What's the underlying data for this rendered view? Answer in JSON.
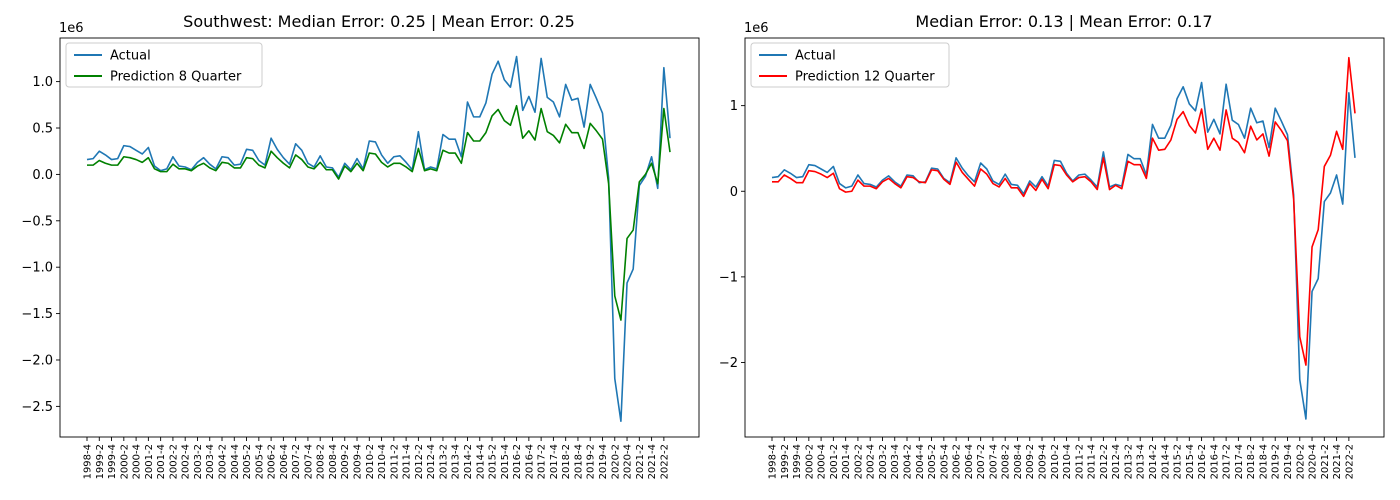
{
  "chart_data": [
    {
      "type": "line",
      "title": "Southwest: Median Error: 0.25 | Mean Error: 0.25",
      "xlabel": "",
      "ylabel": "",
      "offset_text": "1e6",
      "ylim": [
        -2.83,
        1.47
      ],
      "yticks": [
        -2.5,
        -2.0,
        -1.5,
        -1.0,
        -0.5,
        0.0,
        0.5,
        1.0
      ],
      "ytick_labels": [
        "−2.5",
        "−2.0",
        "−1.5",
        "−1.0",
        "−0.5",
        "0.0",
        "0.5",
        "1.0"
      ],
      "legend_position": "upper-left",
      "grid": false,
      "x": [
        "1998-4",
        "1999-1",
        "1999-2",
        "1999-3",
        "1999-4",
        "2000-1",
        "2000-2",
        "2000-3",
        "2000-4",
        "2001-1",
        "2001-2",
        "2001-3",
        "2001-4",
        "2002-1",
        "2002-2",
        "2002-3",
        "2002-4",
        "2003-1",
        "2003-2",
        "2003-3",
        "2003-4",
        "2004-1",
        "2004-2",
        "2004-3",
        "2004-4",
        "2005-1",
        "2005-2",
        "2005-3",
        "2005-4",
        "2006-1",
        "2006-2",
        "2006-3",
        "2006-4",
        "2007-1",
        "2007-2",
        "2007-3",
        "2007-4",
        "2008-1",
        "2008-2",
        "2008-3",
        "2008-4",
        "2009-1",
        "2009-2",
        "2009-3",
        "2009-4",
        "2010-1",
        "2010-2",
        "2010-3",
        "2010-4",
        "2011-1",
        "2011-2",
        "2011-3",
        "2011-4",
        "2012-1",
        "2012-2",
        "2012-3",
        "2012-4",
        "2013-1",
        "2013-2",
        "2013-3",
        "2013-4",
        "2014-1",
        "2014-2",
        "2014-3",
        "2014-4",
        "2015-1",
        "2015-2",
        "2015-3",
        "2015-4",
        "2016-1",
        "2016-2",
        "2016-3",
        "2016-4",
        "2017-1",
        "2017-2",
        "2017-3",
        "2017-4",
        "2018-1",
        "2018-2",
        "2018-3",
        "2018-4",
        "2019-1",
        "2019-2",
        "2019-3",
        "2019-4",
        "2020-1",
        "2020-2",
        "2020-3",
        "2020-4",
        "2021-1",
        "2021-2",
        "2021-3",
        "2021-4",
        "2022-1",
        "2022-2",
        "2022-3"
      ],
      "x_tick_labels": [
        "1998-4",
        "1999-2",
        "1999-4",
        "2000-2",
        "2000-4",
        "2001-2",
        "2001-4",
        "2002-2",
        "2002-4",
        "2003-2",
        "2003-4",
        "2004-2",
        "2004-4",
        "2005-2",
        "2005-4",
        "2006-2",
        "2006-4",
        "2007-2",
        "2007-4",
        "2008-2",
        "2008-4",
        "2009-2",
        "2009-4",
        "2010-2",
        "2010-4",
        "2011-2",
        "2011-4",
        "2012-2",
        "2012-4",
        "2013-2",
        "2013-4",
        "2014-2",
        "2014-4",
        "2015-2",
        "2015-4",
        "2016-2",
        "2016-4",
        "2017-2",
        "2017-4",
        "2018-2",
        "2018-4",
        "2019-2",
        "2019-4",
        "2020-2",
        "2020-4",
        "2021-2",
        "2021-4",
        "2022-2"
      ],
      "series": [
        {
          "name": "Actual",
          "color": "#1f77b4",
          "values": [
            0.16,
            0.17,
            0.25,
            0.21,
            0.16,
            0.17,
            0.31,
            0.3,
            0.26,
            0.22,
            0.29,
            0.09,
            0.04,
            0.06,
            0.19,
            0.09,
            0.08,
            0.05,
            0.13,
            0.18,
            0.11,
            0.06,
            0.19,
            0.18,
            0.1,
            0.11,
            0.27,
            0.26,
            0.15,
            0.1,
            0.39,
            0.27,
            0.18,
            0.11,
            0.33,
            0.26,
            0.12,
            0.08,
            0.2,
            0.08,
            0.07,
            -0.03,
            0.12,
            0.05,
            0.17,
            0.06,
            0.36,
            0.35,
            0.21,
            0.12,
            0.19,
            0.2,
            0.13,
            0.05,
            0.46,
            0.05,
            0.08,
            0.06,
            0.43,
            0.38,
            0.38,
            0.19,
            0.78,
            0.62,
            0.62,
            0.77,
            1.08,
            1.22,
            1.02,
            0.94,
            1.27,
            0.69,
            0.84,
            0.67,
            1.25,
            0.83,
            0.78,
            0.62,
            0.97,
            0.8,
            0.82,
            0.51,
            0.97,
            0.82,
            0.66,
            -0.04,
            -2.2,
            -2.66,
            -1.17,
            -1.02,
            -0.12,
            -0.02,
            0.19,
            -0.15,
            1.15,
            0.39
          ]
        },
        {
          "name": "Prediction 8 Quarter",
          "color": "#008000",
          "values": [
            0.1,
            0.1,
            0.15,
            0.12,
            0.1,
            0.1,
            0.19,
            0.18,
            0.16,
            0.13,
            0.18,
            0.06,
            0.03,
            0.03,
            0.11,
            0.06,
            0.06,
            0.04,
            0.09,
            0.12,
            0.07,
            0.04,
            0.13,
            0.12,
            0.07,
            0.07,
            0.18,
            0.17,
            0.1,
            0.07,
            0.25,
            0.18,
            0.12,
            0.07,
            0.21,
            0.16,
            0.08,
            0.06,
            0.13,
            0.05,
            0.05,
            -0.05,
            0.09,
            0.03,
            0.12,
            0.04,
            0.23,
            0.22,
            0.13,
            0.08,
            0.12,
            0.12,
            0.08,
            0.03,
            0.28,
            0.04,
            0.06,
            0.04,
            0.26,
            0.23,
            0.23,
            0.12,
            0.45,
            0.36,
            0.36,
            0.45,
            0.63,
            0.7,
            0.58,
            0.53,
            0.74,
            0.39,
            0.47,
            0.37,
            0.71,
            0.46,
            0.42,
            0.34,
            0.54,
            0.45,
            0.45,
            0.28,
            0.55,
            0.47,
            0.38,
            -0.1,
            -1.31,
            -1.57,
            -0.69,
            -0.6,
            -0.08,
            0.0,
            0.12,
            -0.1,
            0.71,
            0.24
          ]
        }
      ]
    },
    {
      "type": "line",
      "title": "Median Error: 0.13 | Mean Error: 0.17",
      "xlabel": "",
      "ylabel": "",
      "offset_text": "1e6",
      "ylim": [
        -2.87,
        1.79
      ],
      "yticks": [
        -2,
        -1,
        0,
        1
      ],
      "ytick_labels": [
        "−2",
        "−1",
        "0",
        "1"
      ],
      "legend_position": "upper-left",
      "grid": false,
      "x": [
        "1998-4",
        "1999-1",
        "1999-2",
        "1999-3",
        "1999-4",
        "2000-1",
        "2000-2",
        "2000-3",
        "2000-4",
        "2001-1",
        "2001-2",
        "2001-3",
        "2001-4",
        "2002-1",
        "2002-2",
        "2002-3",
        "2002-4",
        "2003-1",
        "2003-2",
        "2003-3",
        "2003-4",
        "2004-1",
        "2004-2",
        "2004-3",
        "2004-4",
        "2005-1",
        "2005-2",
        "2005-3",
        "2005-4",
        "2006-1",
        "2006-2",
        "2006-3",
        "2006-4",
        "2007-1",
        "2007-2",
        "2007-3",
        "2007-4",
        "2008-1",
        "2008-2",
        "2008-3",
        "2008-4",
        "2009-1",
        "2009-2",
        "2009-3",
        "2009-4",
        "2010-1",
        "2010-2",
        "2010-3",
        "2010-4",
        "2011-1",
        "2011-2",
        "2011-3",
        "2011-4",
        "2012-1",
        "2012-2",
        "2012-3",
        "2012-4",
        "2013-1",
        "2013-2",
        "2013-3",
        "2013-4",
        "2014-1",
        "2014-2",
        "2014-3",
        "2014-4",
        "2015-1",
        "2015-2",
        "2015-3",
        "2015-4",
        "2016-1",
        "2016-2",
        "2016-3",
        "2016-4",
        "2017-1",
        "2017-2",
        "2017-3",
        "2017-4",
        "2018-1",
        "2018-2",
        "2018-3",
        "2018-4",
        "2019-1",
        "2019-2",
        "2019-3",
        "2019-4",
        "2020-1",
        "2020-2",
        "2020-3",
        "2020-4",
        "2021-1",
        "2021-2",
        "2021-3",
        "2021-4",
        "2022-1",
        "2022-2",
        "2022-3"
      ],
      "x_tick_labels": [
        "1998-4",
        "1999-2",
        "1999-4",
        "2000-2",
        "2000-4",
        "2001-2",
        "2001-4",
        "2002-2",
        "2002-4",
        "2003-2",
        "2003-4",
        "2004-2",
        "2004-4",
        "2005-2",
        "2005-4",
        "2006-2",
        "2006-4",
        "2007-2",
        "2007-4",
        "2008-2",
        "2008-4",
        "2009-2",
        "2009-4",
        "2010-2",
        "2010-4",
        "2011-2",
        "2011-4",
        "2012-2",
        "2012-4",
        "2013-2",
        "2013-4",
        "2014-2",
        "2014-4",
        "2015-2",
        "2015-4",
        "2016-2",
        "2016-4",
        "2017-2",
        "2017-4",
        "2018-2",
        "2018-4",
        "2019-2",
        "2019-4",
        "2020-2",
        "2020-4",
        "2021-2",
        "2021-4",
        "2022-2"
      ],
      "series": [
        {
          "name": "Actual",
          "color": "#1f77b4",
          "values": [
            0.16,
            0.17,
            0.25,
            0.21,
            0.16,
            0.17,
            0.31,
            0.3,
            0.26,
            0.22,
            0.29,
            0.09,
            0.04,
            0.06,
            0.19,
            0.09,
            0.08,
            0.05,
            0.13,
            0.18,
            0.11,
            0.06,
            0.19,
            0.18,
            0.1,
            0.11,
            0.27,
            0.26,
            0.15,
            0.1,
            0.39,
            0.27,
            0.18,
            0.11,
            0.33,
            0.26,
            0.12,
            0.08,
            0.2,
            0.08,
            0.07,
            -0.03,
            0.12,
            0.05,
            0.17,
            0.06,
            0.36,
            0.35,
            0.21,
            0.12,
            0.19,
            0.2,
            0.13,
            0.05,
            0.46,
            0.05,
            0.08,
            0.06,
            0.43,
            0.38,
            0.38,
            0.19,
            0.78,
            0.62,
            0.62,
            0.77,
            1.08,
            1.22,
            1.02,
            0.94,
            1.27,
            0.69,
            0.84,
            0.67,
            1.25,
            0.83,
            0.78,
            0.62,
            0.97,
            0.8,
            0.82,
            0.51,
            0.97,
            0.82,
            0.66,
            -0.04,
            -2.2,
            -2.66,
            -1.17,
            -1.02,
            -0.12,
            -0.02,
            0.19,
            -0.15,
            1.15,
            0.39
          ]
        },
        {
          "name": "Prediction 12 Quarter",
          "color": "#ff0000",
          "values": [
            0.11,
            0.11,
            0.19,
            0.15,
            0.1,
            0.1,
            0.24,
            0.23,
            0.2,
            0.16,
            0.21,
            0.03,
            -0.01,
            0.0,
            0.13,
            0.06,
            0.06,
            0.03,
            0.11,
            0.15,
            0.09,
            0.04,
            0.17,
            0.16,
            0.11,
            0.1,
            0.25,
            0.24,
            0.14,
            0.08,
            0.34,
            0.22,
            0.14,
            0.06,
            0.26,
            0.2,
            0.09,
            0.05,
            0.15,
            0.04,
            0.04,
            -0.06,
            0.09,
            0.01,
            0.14,
            0.03,
            0.31,
            0.3,
            0.19,
            0.11,
            0.16,
            0.17,
            0.11,
            0.02,
            0.39,
            0.02,
            0.07,
            0.03,
            0.35,
            0.31,
            0.31,
            0.15,
            0.62,
            0.48,
            0.49,
            0.6,
            0.84,
            0.93,
            0.77,
            0.68,
            0.96,
            0.49,
            0.62,
            0.48,
            0.95,
            0.62,
            0.57,
            0.45,
            0.76,
            0.6,
            0.67,
            0.41,
            0.81,
            0.71,
            0.59,
            -0.09,
            -1.7,
            -2.03,
            -0.65,
            -0.45,
            0.29,
            0.42,
            0.7,
            0.49,
            1.56,
            0.91
          ]
        }
      ]
    }
  ]
}
